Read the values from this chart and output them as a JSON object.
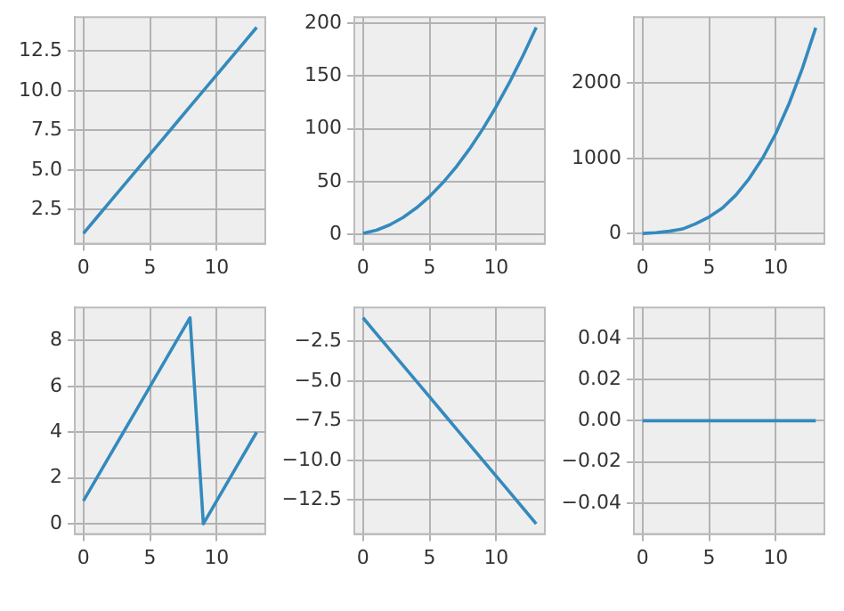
{
  "chart_data": [
    {
      "type": "line",
      "x": [
        0,
        1,
        2,
        3,
        4,
        5,
        6,
        7,
        8,
        9,
        10,
        11,
        12,
        13
      ],
      "series": [
        {
          "color": "#348abd",
          "values": [
            1,
            2,
            3,
            4,
            5,
            6,
            7,
            8,
            9,
            10,
            11,
            12,
            13,
            14
          ]
        }
      ],
      "xlim": [
        -0.65,
        13.65
      ],
      "ylim": [
        0.35,
        14.65
      ],
      "xticks": [
        0,
        5,
        10
      ],
      "yticks": [
        2.5,
        {
          "value": 5,
          "label": "5.0"
        },
        7.5,
        {
          "value": 10,
          "label": "10.0"
        },
        12.5
      ],
      "grid": true
    },
    {
      "type": "line",
      "x": [
        0,
        1,
        2,
        3,
        4,
        5,
        6,
        7,
        8,
        9,
        10,
        11,
        12,
        13
      ],
      "series": [
        {
          "color": "#348abd",
          "values": [
            1,
            4,
            9,
            16,
            25,
            36,
            49,
            64,
            81,
            100,
            121,
            144,
            169,
            196
          ]
        }
      ],
      "xlim": [
        -0.65,
        13.65
      ],
      "ylim": [
        -8.75,
        205.75
      ],
      "xticks": [
        0,
        5,
        10
      ],
      "yticks": [
        0,
        50,
        100,
        150,
        200
      ],
      "grid": true
    },
    {
      "type": "line",
      "x": [
        0,
        1,
        2,
        3,
        4,
        5,
        6,
        7,
        8,
        9,
        10,
        11,
        12,
        13
      ],
      "series": [
        {
          "color": "#348abd",
          "values": [
            0,
            10,
            30,
            60,
            130,
            220,
            340,
            510,
            730,
            1000,
            1330,
            1730,
            2200,
            2740
          ]
        }
      ],
      "xlim": [
        -0.65,
        13.65
      ],
      "ylim": [
        -136,
        2881
      ],
      "xticks": [
        0,
        5,
        10
      ],
      "yticks": [
        0,
        1000,
        2000
      ],
      "grid": true
    },
    {
      "type": "line",
      "x": [
        0,
        1,
        2,
        3,
        4,
        5,
        6,
        7,
        8,
        9,
        10,
        11,
        12,
        13
      ],
      "series": [
        {
          "color": "#348abd",
          "values": [
            1,
            2,
            3,
            4,
            5,
            6,
            7,
            8,
            9,
            0,
            1,
            2,
            3,
            4
          ]
        }
      ],
      "xlim": [
        -0.65,
        13.65
      ],
      "ylim": [
        -0.45,
        9.45
      ],
      "xticks": [
        0,
        5,
        10
      ],
      "yticks": [
        0,
        2,
        4,
        6,
        8
      ],
      "grid": true
    },
    {
      "type": "line",
      "x": [
        0,
        1,
        2,
        3,
        4,
        5,
        6,
        7,
        8,
        9,
        10,
        11,
        12,
        13
      ],
      "series": [
        {
          "color": "#348abd",
          "values": [
            -1,
            -2,
            -3,
            -4,
            -5,
            -6,
            -7,
            -8,
            -9,
            -10,
            -11,
            -12,
            -13,
            -14
          ]
        }
      ],
      "xlim": [
        -0.65,
        13.65
      ],
      "ylim": [
        -14.65,
        -0.35
      ],
      "xticks": [
        0,
        5,
        10
      ],
      "yticks": [
        {
          "value": -2.5,
          "label": "−2.5"
        },
        {
          "value": -5,
          "label": "−5.0"
        },
        {
          "value": -7.5,
          "label": "−7.5"
        },
        {
          "value": -10,
          "label": "−10.0"
        },
        {
          "value": -12.5,
          "label": "−12.5"
        }
      ],
      "grid": true
    },
    {
      "type": "line",
      "x": [
        0,
        1,
        2,
        3,
        4,
        5,
        6,
        7,
        8,
        9,
        10,
        11,
        12,
        13
      ],
      "series": [
        {
          "color": "#348abd",
          "values": [
            0,
            0,
            0,
            0,
            0,
            0,
            0,
            0,
            0,
            0,
            0,
            0,
            0,
            0
          ]
        }
      ],
      "xlim": [
        -0.65,
        13.65
      ],
      "ylim": [
        -0.055,
        0.055
      ],
      "xticks": [
        0,
        5,
        10
      ],
      "yticks": [
        {
          "value": -0.04,
          "label": "−0.04"
        },
        {
          "value": -0.02,
          "label": "−0.02"
        },
        {
          "value": 0,
          "label": "0.00"
        },
        {
          "value": 0.02,
          "label": "0.02"
        },
        {
          "value": 0.04,
          "label": "0.04"
        }
      ],
      "grid": true
    }
  ]
}
